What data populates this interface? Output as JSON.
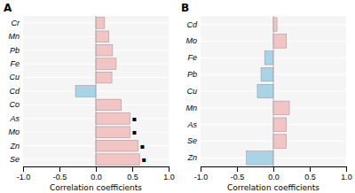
{
  "chart_data": [
    {
      "type": "bar",
      "orientation": "horizontal",
      "title": "A",
      "categories": [
        "Cr",
        "Mn",
        "Pb",
        "Fe",
        "Cu",
        "Cd",
        "Co",
        "As",
        "Mo",
        "Zn",
        "Se"
      ],
      "values": [
        0.12,
        0.18,
        0.23,
        0.28,
        0.22,
        -0.28,
        0.35,
        0.47,
        0.47,
        0.58,
        0.6
      ],
      "colors": [
        "#F2C4C4",
        "#F2C4C4",
        "#F2C4C4",
        "#F2C4C4",
        "#F2C4C4",
        "#A8D4E6",
        "#F2C4C4",
        "#F2C4C4",
        "#F2C4C4",
        "#F2C4C4",
        "#F2C4C4"
      ],
      "annotations": [
        {
          "text": "▪",
          "category": "As"
        },
        {
          "text": "▪",
          "category": "Mo"
        },
        {
          "text": "▪",
          "category": "Zn"
        },
        {
          "text": "▪",
          "category": "Se"
        }
      ],
      "xlabel": "Correlation coefficients",
      "xlim": [
        -1.0,
        1.0
      ],
      "xticks": [
        {
          "value": -1.0,
          "label": "-1.0"
        },
        -0.5,
        {
          "value": 0.0,
          "label": "0.0"
        },
        0.5,
        {
          "value": 1.0,
          "label": "1.0"
        }
      ],
      "grid": true
    },
    {
      "type": "bar",
      "orientation": "horizontal",
      "title": "B",
      "categories": [
        "Cd",
        "Mo",
        "Fe",
        "Pb",
        "Cu",
        "Mn",
        "As",
        "Se",
        "Zn"
      ],
      "values": [
        0.05,
        0.18,
        -0.12,
        -0.17,
        -0.22,
        0.22,
        0.18,
        0.18,
        -0.37
      ],
      "colors": [
        "#F2C4C4",
        "#F2C4C4",
        "#A8D4E6",
        "#A8D4E6",
        "#A8D4E6",
        "#F2C4C4",
        "#F2C4C4",
        "#F2C4C4",
        "#A8D4E6"
      ],
      "xlabel": "Correlation coefficients",
      "xlim": [
        -1.0,
        1.0
      ],
      "xticks": [
        {
          "value": -1.0,
          "label": "-1.0"
        },
        -0.5,
        {
          "value": 0.0,
          "label": "0.0"
        },
        0.5,
        {
          "value": 1.0,
          "label": "1.0"
        }
      ],
      "grid": true
    }
  ]
}
